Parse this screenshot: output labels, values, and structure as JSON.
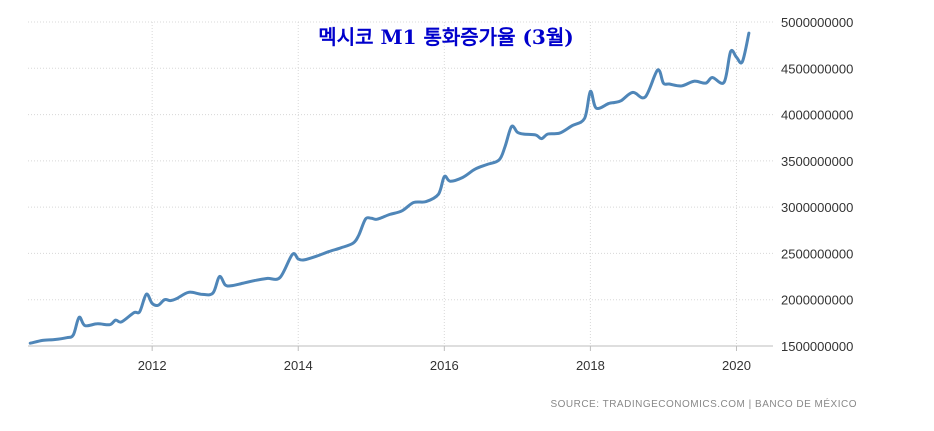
{
  "chart_data": {
    "type": "line",
    "title": "멕시코 M1 통화증가율 (3월)",
    "source": "SOURCE: TRADINGECONOMICS.COM | BANCO DE MÉXICO",
    "xlim": [
      2010.3,
      2020.5
    ],
    "ylim": [
      1500000000,
      5000000000
    ],
    "x_ticks": [
      2012,
      2014,
      2016,
      2018,
      2020
    ],
    "x_tick_labels": [
      "2012",
      "2014",
      "2016",
      "2018",
      "2020"
    ],
    "y_ticks": [
      1500000000,
      2000000000,
      2500000000,
      3000000000,
      3500000000,
      4000000000,
      4500000000,
      5000000000
    ],
    "y_tick_labels": [
      "1500000000",
      "2000000000",
      "2500000000",
      "3000000000",
      "3500000000",
      "4000000000",
      "4500000000",
      "5000000000"
    ],
    "grid": true,
    "color": "#4f86b8",
    "series": [
      {
        "x": [
          2010.33,
          2010.5,
          2010.67,
          2010.83,
          2010.92,
          2011.0,
          2011.08,
          2011.25,
          2011.42,
          2011.5,
          2011.58,
          2011.75,
          2011.83,
          2011.92,
          2012.0,
          2012.08,
          2012.17,
          2012.25,
          2012.33,
          2012.5,
          2012.67,
          2012.83,
          2012.92,
          2013.0,
          2013.08,
          2013.25,
          2013.42,
          2013.58,
          2013.75,
          2013.92,
          2014.0,
          2014.08,
          2014.25,
          2014.42,
          2014.58,
          2014.75,
          2014.83,
          2014.92,
          2015.0,
          2015.08,
          2015.25,
          2015.42,
          2015.58,
          2015.75,
          2015.92,
          2016.0,
          2016.08,
          2016.25,
          2016.42,
          2016.58,
          2016.75,
          2016.83,
          2016.92,
          2017.0,
          2017.08,
          2017.25,
          2017.33,
          2017.42,
          2017.58,
          2017.75,
          2017.92,
          2018.0,
          2018.08,
          2018.25,
          2018.33,
          2018.42,
          2018.58,
          2018.75,
          2018.92,
          2019.0,
          2019.08,
          2019.25,
          2019.42,
          2019.58,
          2019.67,
          2019.83,
          2019.92,
          2020.0,
          2020.08,
          2020.17
        ],
        "values": [
          1530000000,
          1560000000,
          1570000000,
          1590000000,
          1620000000,
          1810000000,
          1720000000,
          1740000000,
          1730000000,
          1780000000,
          1760000000,
          1860000000,
          1870000000,
          2060000000,
          1960000000,
          1940000000,
          2000000000,
          1990000000,
          2010000000,
          2080000000,
          2060000000,
          2070000000,
          2250000000,
          2160000000,
          2150000000,
          2180000000,
          2210000000,
          2230000000,
          2240000000,
          2490000000,
          2440000000,
          2430000000,
          2470000000,
          2520000000,
          2560000000,
          2610000000,
          2700000000,
          2870000000,
          2880000000,
          2870000000,
          2920000000,
          2960000000,
          3050000000,
          3060000000,
          3140000000,
          3330000000,
          3280000000,
          3320000000,
          3410000000,
          3460000000,
          3510000000,
          3650000000,
          3870000000,
          3810000000,
          3790000000,
          3780000000,
          3740000000,
          3790000000,
          3800000000,
          3880000000,
          3960000000,
          4250000000,
          4070000000,
          4120000000,
          4130000000,
          4150000000,
          4240000000,
          4190000000,
          4480000000,
          4340000000,
          4330000000,
          4310000000,
          4360000000,
          4340000000,
          4400000000,
          4350000000,
          4680000000,
          4620000000,
          4570000000,
          4880000000
        ]
      }
    ]
  }
}
